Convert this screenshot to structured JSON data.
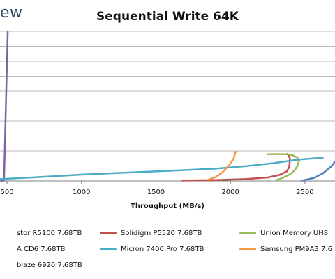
{
  "logo": {
    "text": "ew"
  },
  "chart_data": {
    "type": "line",
    "title": "Sequential Write 64K",
    "xlabel": "Throughput (MB/s)",
    "ylabel": "",
    "x_ticks": [
      "500",
      "1000",
      "1500",
      "2000",
      "2500"
    ],
    "x_tick_values": [
      500,
      1000,
      1500,
      2000,
      2500
    ],
    "xlim": [
      453,
      2702
    ],
    "ylim": [
      0,
      100
    ],
    "grid": true,
    "legend_position": "bottom",
    "series": [
      {
        "name": "stor R5100 7.68TB",
        "color": "#4f81bd",
        "points": [
          [
            2480,
            0.2
          ],
          [
            2560,
            2
          ],
          [
            2620,
            5
          ],
          [
            2680,
            10
          ],
          [
            2702,
            13
          ]
        ]
      },
      {
        "name": "Solidigm P5520 7.68TB",
        "color": "#c0504d",
        "points": [
          [
            1680,
            0.3
          ],
          [
            1900,
            0.6
          ],
          [
            2100,
            1.2
          ],
          [
            2250,
            2.3
          ],
          [
            2330,
            4
          ],
          [
            2380,
            6.5
          ],
          [
            2395,
            9.5
          ],
          [
            2400,
            14.5
          ],
          [
            2390,
            17.5
          ],
          [
            2380,
            18
          ]
        ]
      },
      {
        "name": "Union Memory UH8",
        "color": "#9bbb59",
        "points": [
          [
            2250,
            17.8
          ],
          [
            2320,
            17.9
          ],
          [
            2390,
            17.7
          ],
          [
            2420,
            17
          ],
          [
            2450,
            15.5
          ],
          [
            2460,
            13
          ],
          [
            2450,
            10
          ],
          [
            2430,
            7
          ],
          [
            2400,
            4.5
          ],
          [
            2360,
            2.5
          ],
          [
            2330,
            1.2
          ],
          [
            2310,
            0.6
          ]
        ]
      },
      {
        "name": "A CD6 7.68TB",
        "color": "#8064a2",
        "points": [
          [
            460,
            0.1
          ],
          [
            480,
            0.3
          ],
          [
            490,
            40
          ],
          [
            500,
            80
          ],
          [
            505,
            100
          ]
        ]
      },
      {
        "name": "Micron 7400 Pro 7.68TB",
        "color": "#4bacc6",
        "points": [
          [
            453,
            1.2
          ],
          [
            700,
            2.5
          ],
          [
            1000,
            4.2
          ],
          [
            1300,
            5.5
          ],
          [
            1600,
            6.8
          ],
          [
            1900,
            8.2
          ],
          [
            2100,
            9.8
          ],
          [
            2300,
            12
          ],
          [
            2450,
            14.2
          ],
          [
            2620,
            15.5
          ]
        ]
      },
      {
        "name": "Samsung PM9A3 7.6",
        "color": "#f79646",
        "points": [
          [
            1850,
            0.8
          ],
          [
            1900,
            2.5
          ],
          [
            1950,
            6
          ],
          [
            1990,
            10.5
          ],
          [
            2020,
            14.5
          ],
          [
            2035,
            19.5
          ]
        ]
      },
      {
        "name": "blaze 6920 7.68TB",
        "color": "#2c4d75",
        "points": []
      }
    ]
  }
}
